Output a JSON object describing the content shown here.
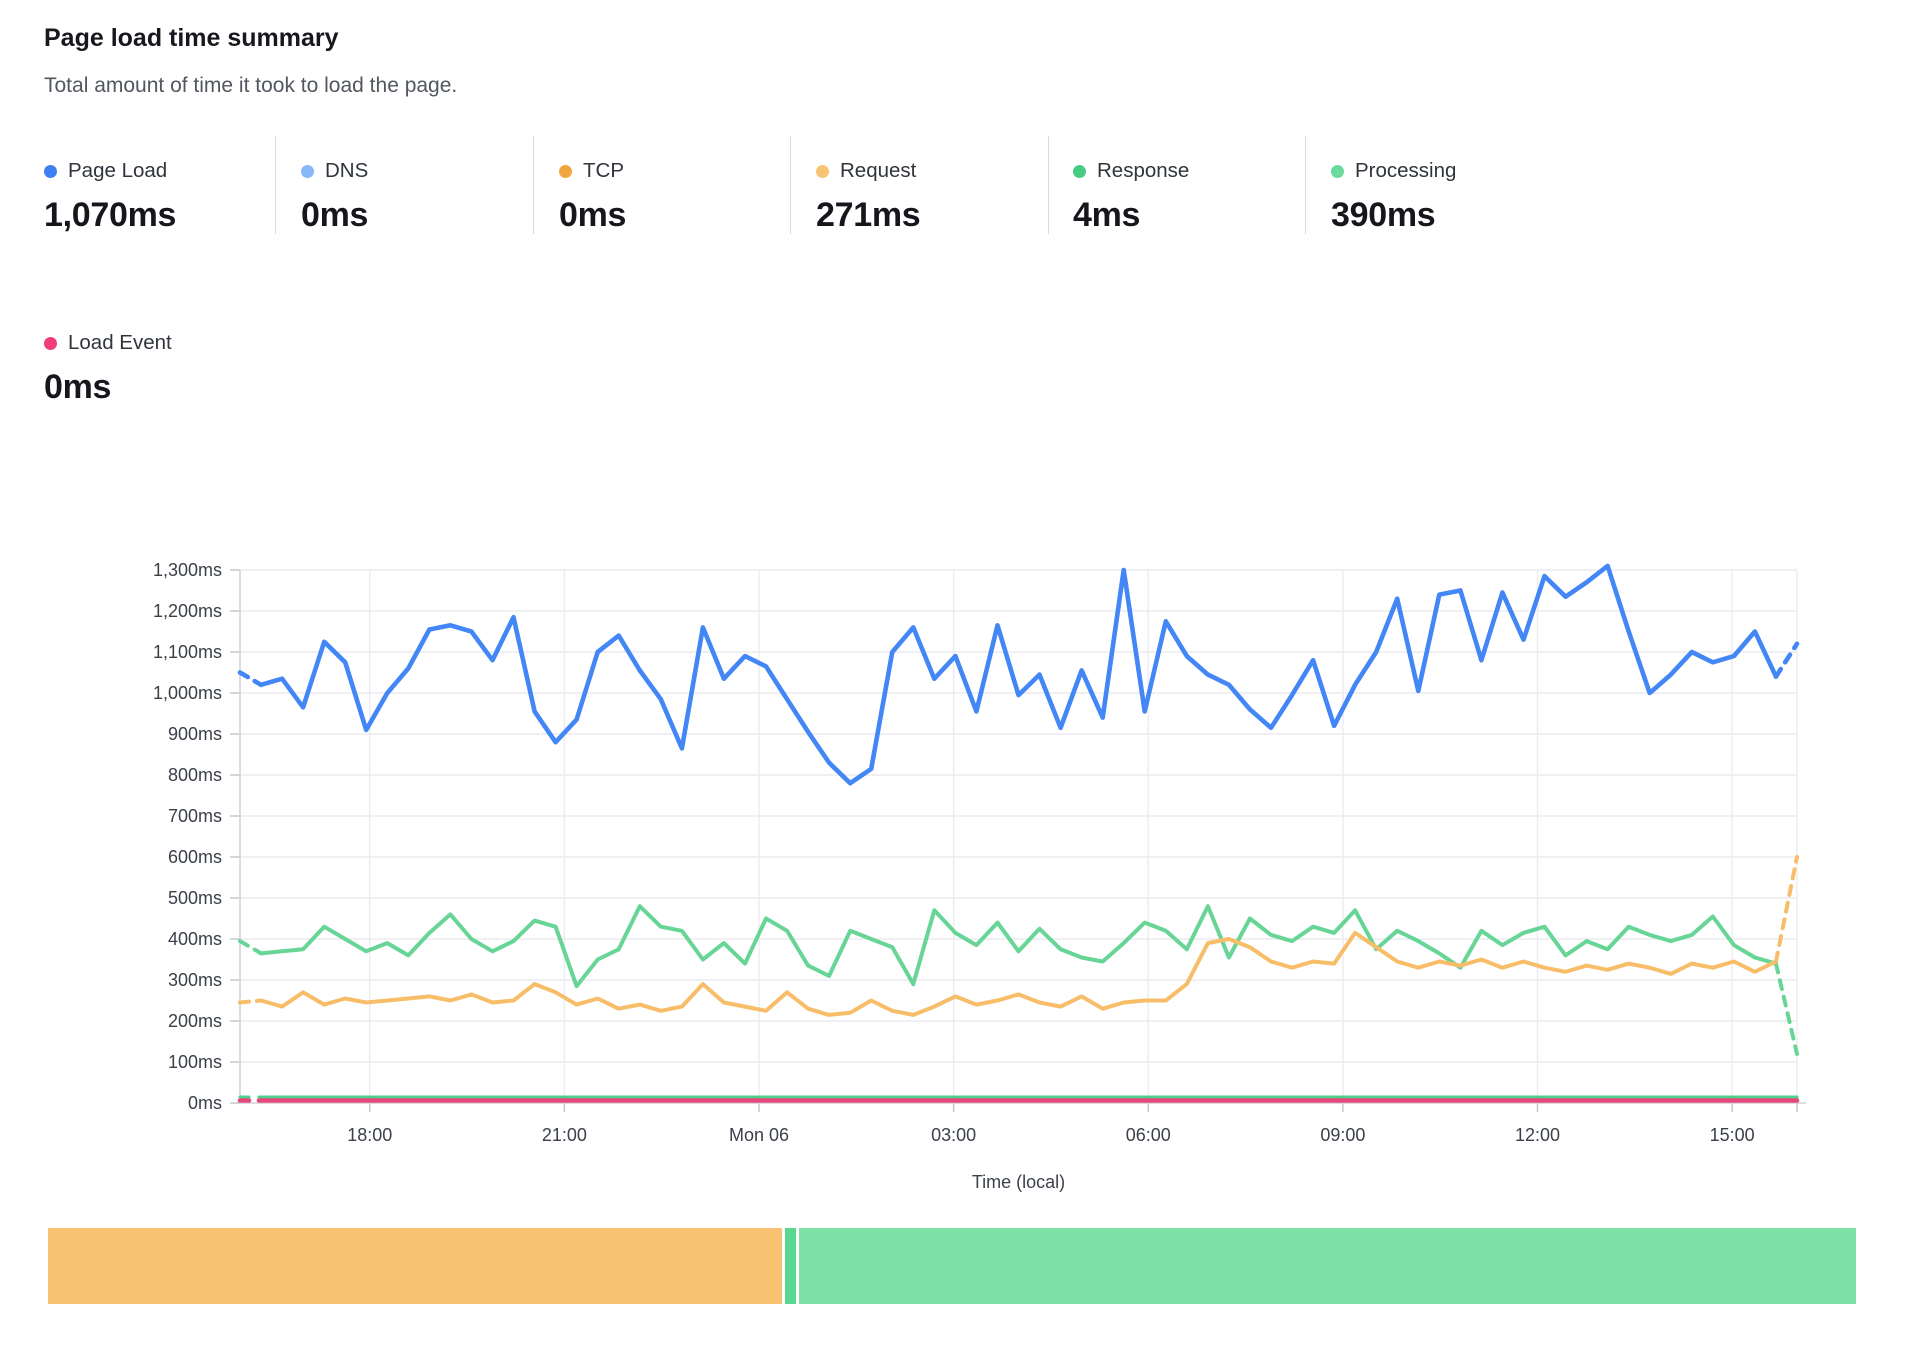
{
  "header": {
    "title": "Page load time summary",
    "subtitle": "Total amount of time it took to load the page."
  },
  "metrics": [
    {
      "label": "Page Load",
      "value": "1,070ms",
      "dot_color": "#3e80f2"
    },
    {
      "label": "DNS",
      "value": "0ms",
      "dot_color": "#88b7f8"
    },
    {
      "label": "TCP",
      "value": "0ms",
      "dot_color": "#f1a43f"
    },
    {
      "label": "Request",
      "value": "271ms",
      "dot_color": "#f7c374"
    },
    {
      "label": "Response",
      "value": "4ms",
      "dot_color": "#46cb85"
    },
    {
      "label": "Processing",
      "value": "390ms",
      "dot_color": "#6cda9c"
    }
  ],
  "metrics_row2": [
    {
      "label": "Load Event",
      "value": "0ms",
      "dot_color": "#ef3e7a"
    }
  ],
  "chart_data": {
    "type": "line",
    "title": "Page load time summary",
    "xlabel": "Time (local)",
    "ylabel": "",
    "ylim": [
      0,
      1300
    ],
    "y_tick_step_ms": 100,
    "y_tick_suffix": "ms",
    "grid": true,
    "x_span_hours": 24,
    "x_start_label": "16:00 (day before Mon 06)",
    "x_tick_hours_from_start": [
      2,
      5,
      8,
      11,
      14,
      17,
      20,
      23
    ],
    "x_tick_labels": [
      "18:00",
      "21:00",
      "Mon 06",
      "03:00",
      "06:00",
      "09:00",
      "12:00",
      "15:00"
    ],
    "point_interval_minutes": 20,
    "series": [
      {
        "name": "Processing",
        "color": "#67d596",
        "dash_start": true,
        "dash_end": true,
        "values": [
          395,
          365,
          370,
          375,
          430,
          400,
          370,
          390,
          360,
          415,
          460,
          400,
          370,
          395,
          445,
          430,
          285,
          350,
          375,
          480,
          430,
          420,
          350,
          390,
          340,
          450,
          420,
          335,
          310,
          420,
          400,
          380,
          290,
          470,
          415,
          385,
          440,
          370,
          425,
          375,
          355,
          345,
          390,
          440,
          420,
          375,
          480,
          355,
          450,
          410,
          395,
          430,
          415,
          470,
          375,
          420,
          395,
          365,
          330,
          420,
          385,
          415,
          430,
          360,
          395,
          375,
          430,
          410,
          395,
          410,
          455,
          385,
          355,
          340,
          120
        ]
      },
      {
        "name": "Request",
        "color": "#f7bd69",
        "dash_start": true,
        "dash_end": true,
        "values": [
          245,
          250,
          235,
          270,
          240,
          255,
          245,
          250,
          255,
          260,
          250,
          265,
          245,
          250,
          290,
          270,
          240,
          255,
          230,
          240,
          225,
          235,
          290,
          245,
          235,
          225,
          270,
          230,
          215,
          220,
          250,
          225,
          215,
          235,
          260,
          240,
          250,
          265,
          245,
          235,
          260,
          230,
          245,
          250,
          250,
          290,
          390,
          400,
          380,
          345,
          330,
          345,
          340,
          415,
          380,
          345,
          330,
          345,
          335,
          350,
          330,
          345,
          330,
          320,
          335,
          325,
          340,
          330,
          315,
          340,
          330,
          345,
          320,
          345,
          600
        ]
      },
      {
        "name": "Page Load",
        "color": "#4386f5",
        "dash_start": true,
        "dash_end": true,
        "values": [
          1050,
          1020,
          1035,
          965,
          1125,
          1075,
          910,
          1000,
          1060,
          1155,
          1165,
          1150,
          1080,
          1185,
          955,
          880,
          935,
          1100,
          1140,
          1055,
          985,
          865,
          1160,
          1035,
          1090,
          1065,
          985,
          905,
          830,
          780,
          815,
          1100,
          1160,
          1035,
          1090,
          955,
          1165,
          995,
          1045,
          915,
          1055,
          940,
          1300,
          955,
          1175,
          1090,
          1045,
          1020,
          960,
          915,
          995,
          1080,
          920,
          1020,
          1100,
          1230,
          1005,
          1240,
          1250,
          1080,
          1245,
          1130,
          1285,
          1235,
          1270,
          1310,
          1150,
          1000,
          1045,
          1100,
          1075,
          1090,
          1150,
          1040,
          1120
        ]
      },
      {
        "name": "Response",
        "color": "#4ecf8b",
        "constant": 4
      },
      {
        "name": "Load Event",
        "color": "#e7487c",
        "constant": 0
      },
      {
        "name": "DNS",
        "color": "#88b7f8",
        "constant": 0,
        "hidden": true
      },
      {
        "name": "TCP",
        "color": "#f1a43f",
        "constant": 0,
        "hidden": true
      }
    ]
  },
  "breakdown_bar": {
    "total_ms": 665,
    "segments": [
      {
        "name": "Request",
        "value_ms": 271,
        "color": "#f8c272"
      },
      {
        "name": "Response",
        "value_ms": 4,
        "color": "#57d78f"
      },
      {
        "name": "Processing",
        "value_ms": 390,
        "color": "#7de0a5"
      }
    ]
  }
}
